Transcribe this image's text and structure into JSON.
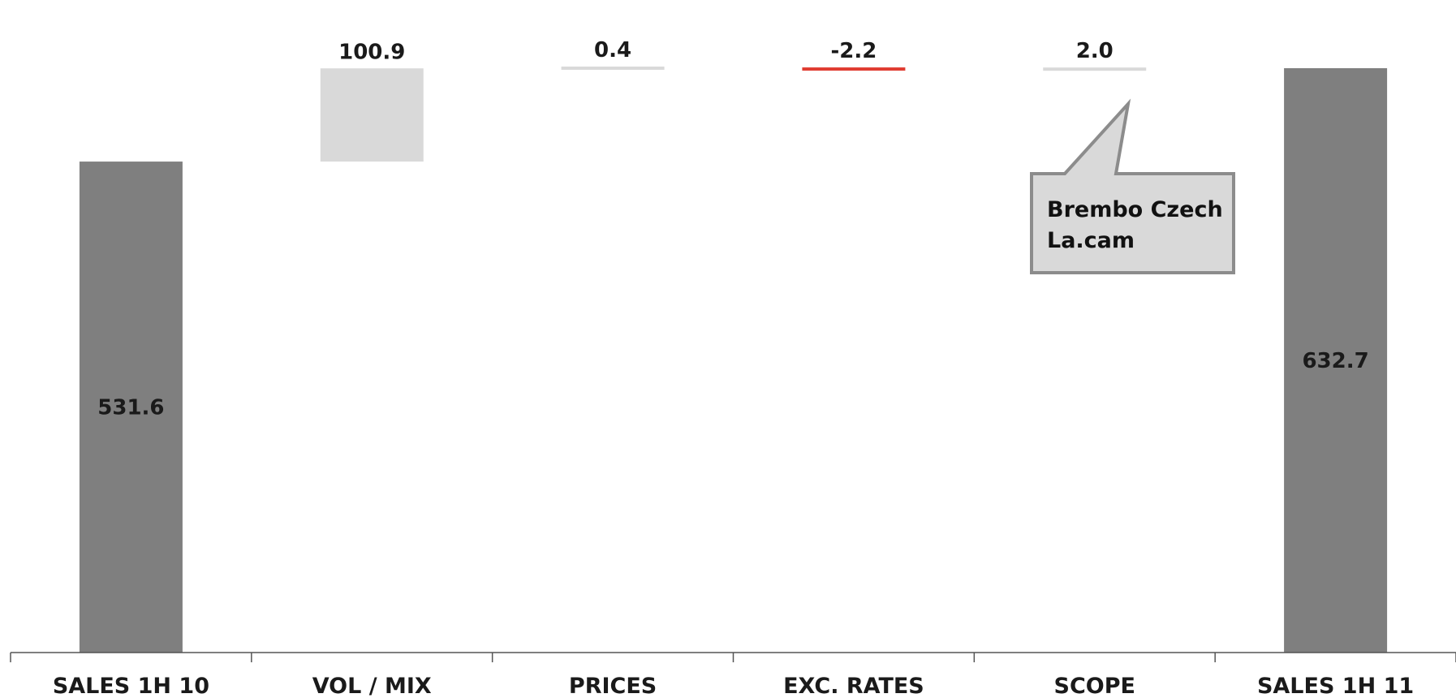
{
  "chart_data": {
    "type": "bar",
    "subtype": "waterfall",
    "categories": [
      "SALES 1H 10",
      "VOL / MIX",
      "PRICES",
      "EXC. RATES",
      "SCOPE",
      "SALES 1H 11"
    ],
    "values": [
      531.6,
      100.9,
      0.4,
      -2.2,
      2.0,
      632.7
    ],
    "value_labels": [
      "531.6",
      "100.9",
      "0.4",
      "-2.2",
      "2.0",
      "632.7"
    ],
    "kinds": [
      "total",
      "delta",
      "delta",
      "delta",
      "delta",
      "total"
    ],
    "colors": [
      "#7f7f7f",
      "#d9d9d9",
      "#d9d9d9",
      "#e03c31",
      "#d9d9d9",
      "#7f7f7f"
    ],
    "title": "",
    "xlabel": "",
    "ylabel": "",
    "ylim": [
      0,
      638
    ],
    "grid": false,
    "legend": "none",
    "annotations": [
      {
        "category": "SCOPE",
        "lines": [
          "Brembo Czech",
          "La.cam"
        ],
        "style": "callout"
      }
    ]
  }
}
